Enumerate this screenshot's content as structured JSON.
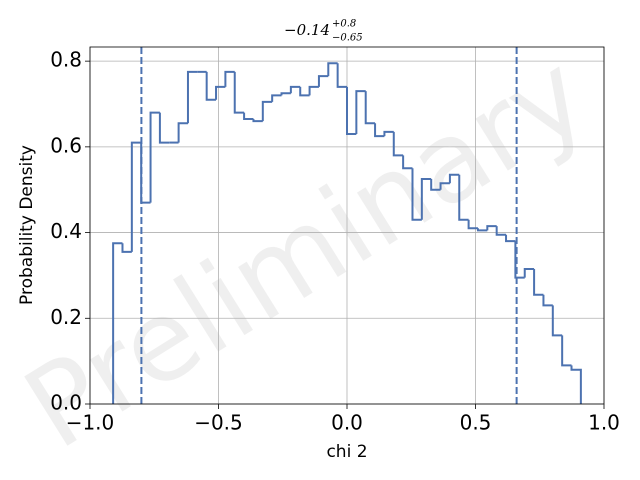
{
  "chart_data": {
    "type": "histogram",
    "title": "−0.14",
    "title_upper": "+0.8",
    "title_lower": "−0.65",
    "x_label": "chi 2",
    "y_label": "Probability Density",
    "watermark": "Preliminary",
    "bins": [
      -0.91,
      -0.8736,
      -0.8372,
      -0.8008,
      -0.7644,
      -0.728,
      -0.6916,
      -0.6552,
      -0.6188,
      -0.5824,
      -0.546,
      -0.5096,
      -0.4732,
      -0.4368,
      -0.4004,
      -0.364,
      -0.3276,
      -0.2912,
      -0.2548,
      -0.2184,
      -0.182,
      -0.1456,
      -0.1092,
      -0.0728,
      -0.0364,
      0,
      0.0364,
      0.0728,
      0.1092,
      0.1456,
      0.182,
      0.2184,
      0.2548,
      0.2912,
      0.3276,
      0.364,
      0.4004,
      0.4368,
      0.4732,
      0.5096,
      0.546,
      0.5824,
      0.6188,
      0.6552,
      0.6916,
      0.728,
      0.7644,
      0.8008,
      0.8372,
      0.8736,
      0.91
    ],
    "values": [
      0.375,
      0.355,
      0.61,
      0.47,
      0.68,
      0.61,
      0.61,
      0.655,
      0.775,
      0.775,
      0.71,
      0.74,
      0.775,
      0.68,
      0.665,
      0.66,
      0.705,
      0.72,
      0.725,
      0.74,
      0.72,
      0.74,
      0.765,
      0.795,
      0.74,
      0.63,
      0.73,
      0.655,
      0.625,
      0.635,
      0.58,
      0.55,
      0.43,
      0.525,
      0.5,
      0.515,
      0.535,
      0.43,
      0.41,
      0.405,
      0.415,
      0.395,
      0.38,
      0.295,
      0.315,
      0.255,
      0.23,
      0.16,
      0.09,
      0.08
    ],
    "color": "#4c72b0",
    "vlines": [
      -0.8,
      0.66
    ],
    "xlim": [
      -1.0,
      1.0
    ],
    "ylim": [
      0,
      0.833
    ],
    "xticks": [
      {
        "value": -1.0,
        "label": "−1.0"
      },
      {
        "value": -0.5,
        "label": "−0.5"
      },
      {
        "value": 0.0,
        "label": "0.0"
      },
      0.5,
      {
        "value": 1.0,
        "label": "1.0"
      }
    ],
    "yticks": [
      {
        "value": 0.0,
        "label": "0.0"
      },
      0.2,
      0.4,
      0.6,
      0.8
    ],
    "grid": true
  }
}
